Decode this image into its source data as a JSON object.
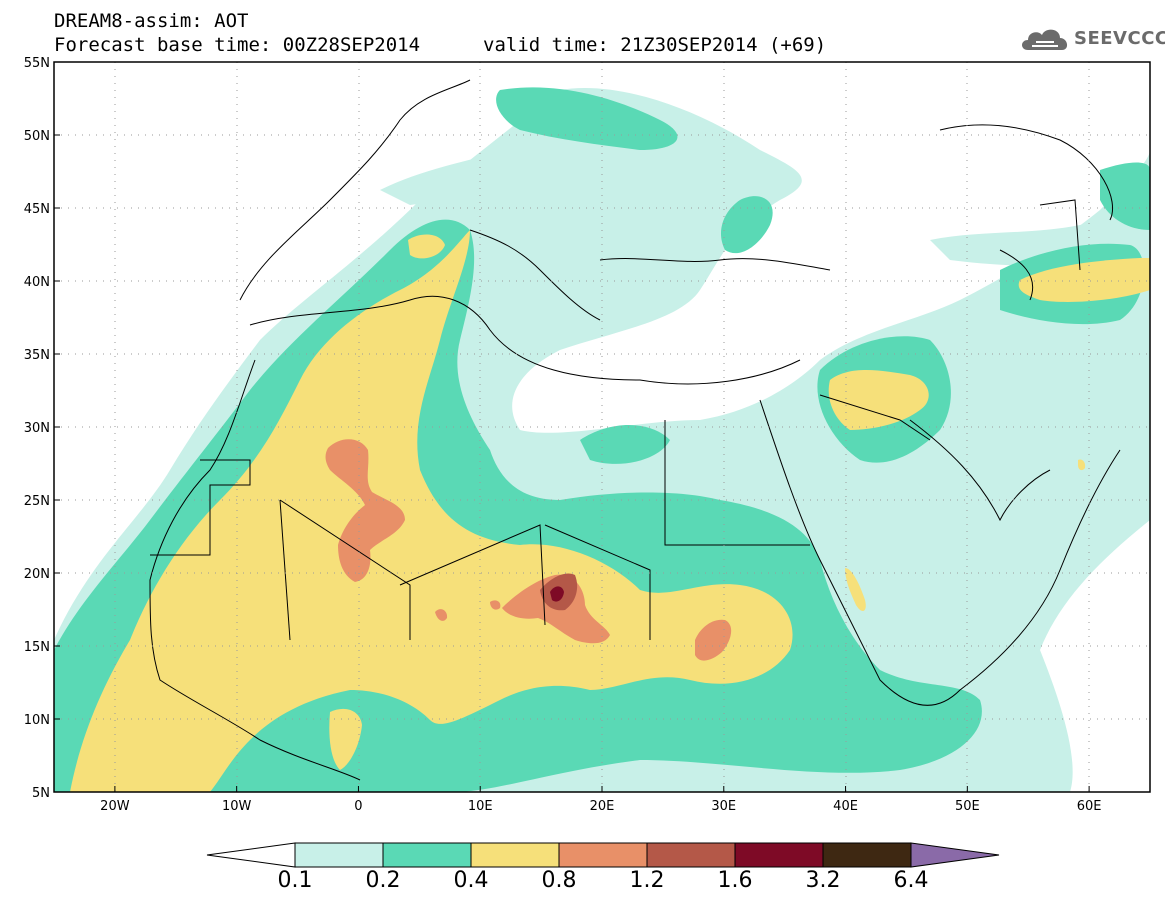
{
  "header": {
    "title_line1": "DREAM8-assim: AOT",
    "title_line2": "Forecast base time: 00Z28SEP2014",
    "valid_time": "valid time: 21Z30SEP2014 (+69)"
  },
  "logo": {
    "text": "SEEVCCC",
    "icon": "cloud-icon"
  },
  "map": {
    "lon_range": [
      -25,
      65
    ],
    "lat_range": [
      5,
      55
    ],
    "lat_ticks": [
      {
        "value": 55,
        "label": "55N"
      },
      {
        "value": 50,
        "label": "50N"
      },
      {
        "value": 45,
        "label": "45N"
      },
      {
        "value": 40,
        "label": "40N"
      },
      {
        "value": 35,
        "label": "35N"
      },
      {
        "value": 30,
        "label": "30N"
      },
      {
        "value": 25,
        "label": "25N"
      },
      {
        "value": 20,
        "label": "20N"
      },
      {
        "value": 15,
        "label": "15N"
      },
      {
        "value": 10,
        "label": "10N"
      },
      {
        "value": 5,
        "label": "5N"
      }
    ],
    "lon_ticks": [
      {
        "value": -20,
        "label": "20W"
      },
      {
        "value": -10,
        "label": "10W"
      },
      {
        "value": 0,
        "label": "0"
      },
      {
        "value": 10,
        "label": "10E"
      },
      {
        "value": 20,
        "label": "20E"
      },
      {
        "value": 30,
        "label": "30E"
      },
      {
        "value": 40,
        "label": "40E"
      },
      {
        "value": 50,
        "label": "50E"
      },
      {
        "value": 60,
        "label": "60E"
      }
    ],
    "grid": "dotted"
  },
  "colorbar": {
    "levels": [
      "0.1",
      "0.2",
      "0.4",
      "0.8",
      "1.2",
      "1.6",
      "3.2",
      "6.4"
    ],
    "colors": [
      "#c8f0e8",
      "#5ad9b5",
      "#f6e07a",
      "#e89068",
      "#b45848",
      "#7e0a26",
      "#3e2812",
      "#8a6aa8"
    ],
    "under_color": "#ffffff"
  },
  "chart_data": {
    "type": "heatmap",
    "title": "DREAM8-assim: AOT",
    "xlim": [
      -25,
      65
    ],
    "ylim": [
      5,
      55
    ],
    "regions": [
      {
        "level": "0.1",
        "lon": [
          -15,
          12
        ],
        "lat": [
          5,
          48
        ]
      },
      {
        "level": "0.2",
        "lon": [
          -15,
          12
        ],
        "lat": [
          10,
          43
        ]
      },
      {
        "level": "0.4",
        "lon": [
          -12,
          10
        ],
        "lat": [
          10,
          42
        ]
      },
      {
        "level": "0.8",
        "lon": [
          -2,
          2
        ],
        "lat": [
          19,
          29
        ]
      },
      {
        "level": "0.8",
        "lon": [
          12,
          20
        ],
        "lat": [
          15,
          20
        ]
      },
      {
        "level": "1.2",
        "lon": [
          15,
          18
        ],
        "lat": [
          17,
          19
        ]
      },
      {
        "level": "1.6",
        "lon": [
          16,
          17
        ],
        "lat": [
          18,
          19
        ]
      },
      {
        "level": "0.8",
        "lon": [
          28,
          31
        ],
        "lat": [
          13,
          16
        ]
      },
      {
        "level": "0.4",
        "lon": [
          -24,
          -16
        ],
        "lat": [
          6,
          12
        ]
      },
      {
        "level": "0.4",
        "lon": [
          40,
          46
        ],
        "lat": [
          29,
          33
        ]
      },
      {
        "level": "0.4",
        "lon": [
          54,
          65
        ],
        "lat": [
          38,
          42
        ]
      }
    ]
  }
}
